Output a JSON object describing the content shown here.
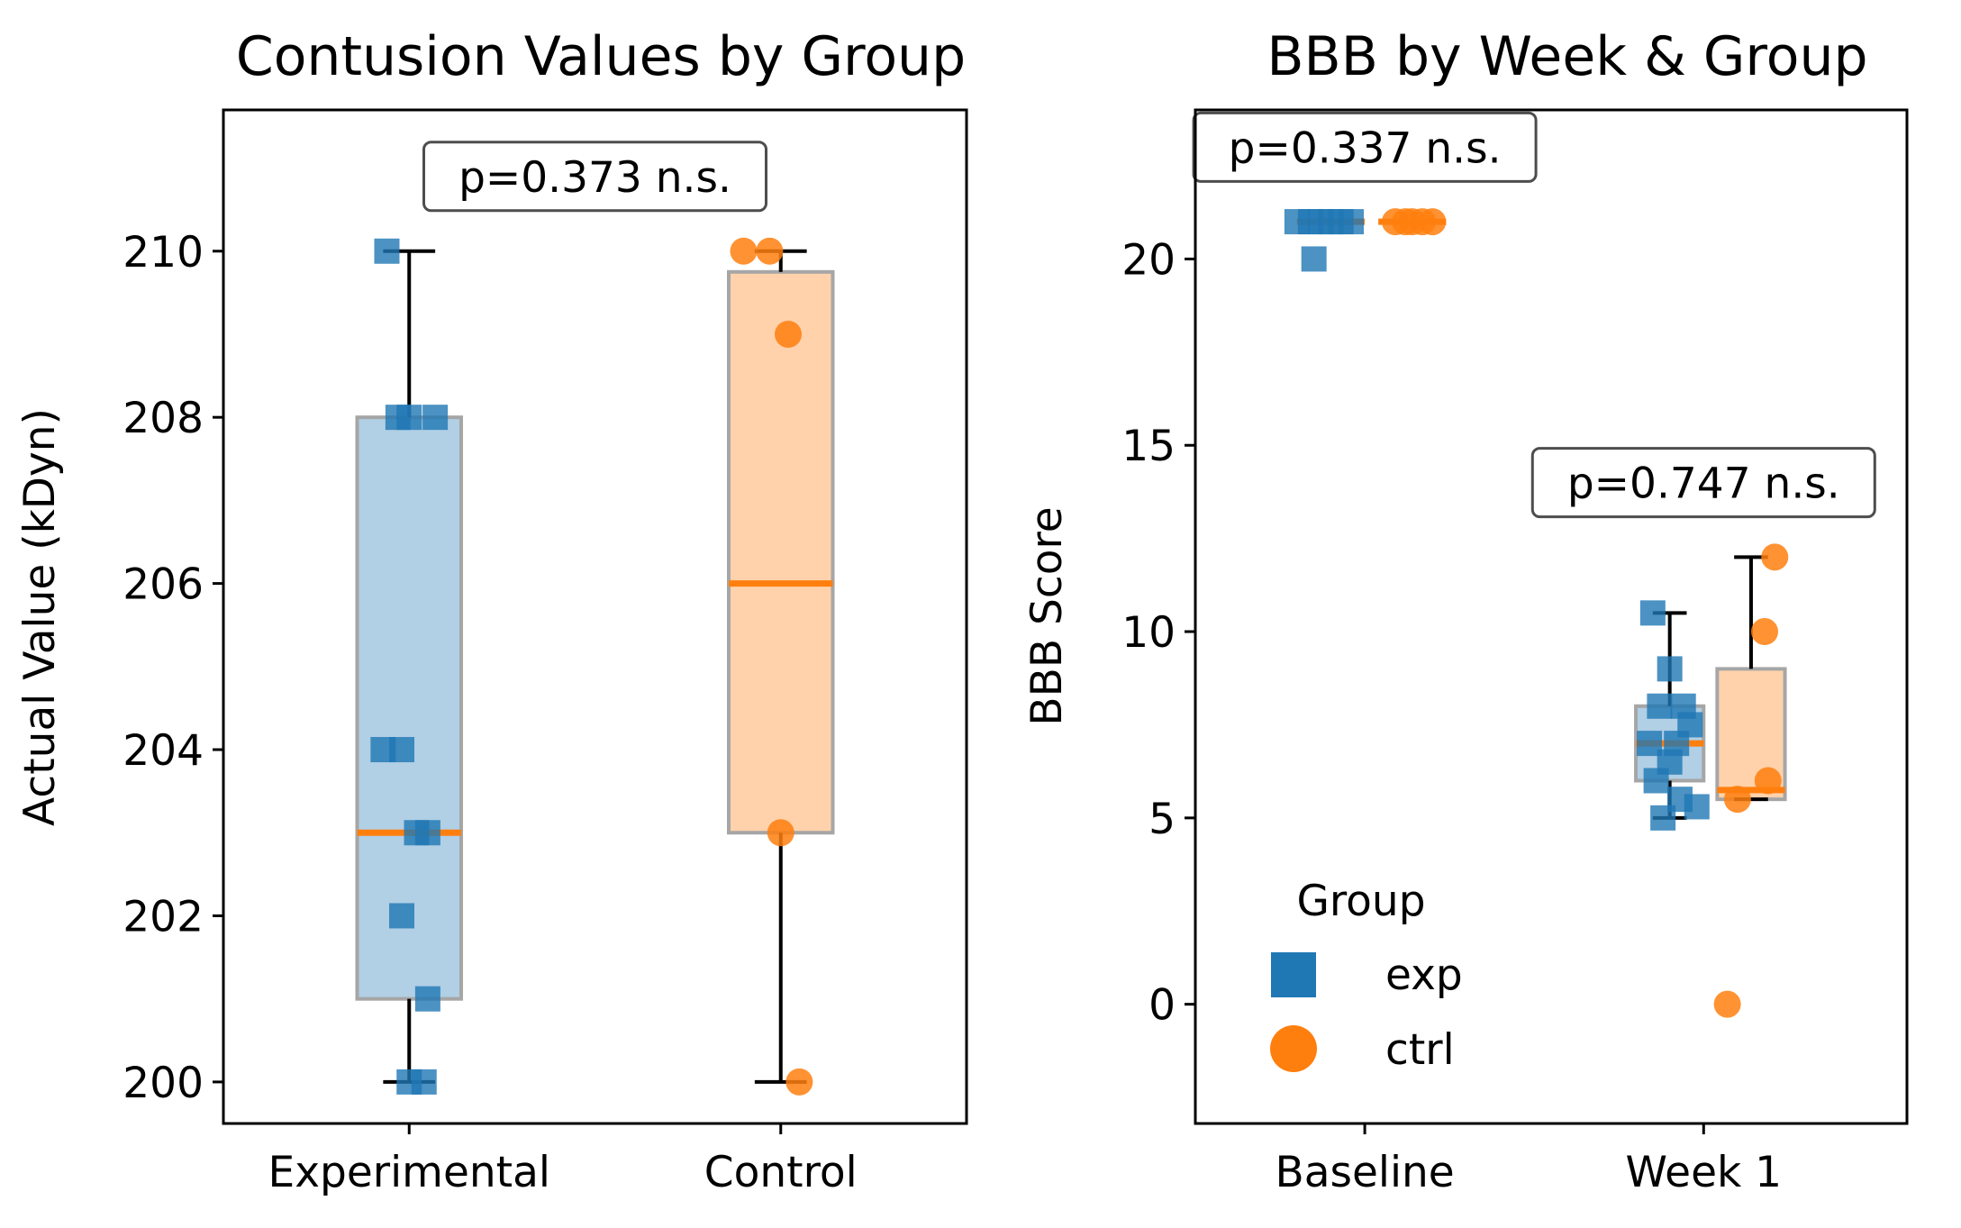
{
  "chart_data": [
    {
      "type": "box",
      "title": "Contusion Values by Group",
      "xlabel": "",
      "ylabel": "Actual Value (kDyn)",
      "categories": [
        "Experimental",
        "Control"
      ],
      "ylim": [
        199.5,
        211.7
      ],
      "yticks": [
        200,
        202,
        204,
        206,
        208,
        210
      ],
      "grid": false,
      "boxes": [
        {
          "category": "Experimental",
          "color": "#1f77b4",
          "whisker_low": 200,
          "q1": 201,
          "median": 203,
          "q3": 208,
          "whisker_high": 210
        },
        {
          "category": "Control",
          "color": "#ff7f0e",
          "whisker_low": 200,
          "q1": 203,
          "median": 206,
          "q3": 209.75,
          "whisker_high": 210
        }
      ],
      "points": [
        {
          "category": "Experimental",
          "marker": "square",
          "color": "#1f77b4",
          "values": [
            210,
            208,
            208,
            208,
            204,
            204,
            203,
            203,
            202,
            201,
            200,
            200
          ],
          "offsets": [
            -0.06,
            -0.03,
            0.0,
            0.07,
            -0.07,
            -0.02,
            0.02,
            0.05,
            -0.02,
            0.05,
            0.0,
            0.04
          ]
        },
        {
          "category": "Control",
          "marker": "circle",
          "color": "#ff7f0e",
          "values": [
            210,
            210,
            209,
            203,
            200
          ],
          "offsets": [
            -0.1,
            -0.03,
            0.02,
            0.0,
            0.05
          ]
        }
      ],
      "annotations": [
        {
          "text": "p=0.373 n.s.",
          "x": 0.5,
          "y": 210.9
        }
      ]
    },
    {
      "type": "box",
      "title": "BBB by Week & Group",
      "xlabel": "",
      "ylabel": "BBB Score",
      "categories": [
        "Baseline",
        "Week 1"
      ],
      "ylim": [
        -3.2,
        24.0
      ],
      "yticks": [
        0,
        5,
        10,
        15,
        20
      ],
      "grid": false,
      "boxes": [
        {
          "category": "Baseline",
          "group": "exp",
          "color": "#1f77b4",
          "whisker_low": 21,
          "q1": 21,
          "median": 21,
          "q3": 21,
          "whisker_high": 21
        },
        {
          "category": "Baseline",
          "group": "ctrl",
          "color": "#ff7f0e",
          "whisker_low": 21,
          "q1": 21,
          "median": 21,
          "q3": 21,
          "whisker_high": 21
        },
        {
          "category": "Week 1",
          "group": "exp",
          "color": "#1f77b4",
          "whisker_low": 5,
          "q1": 6,
          "median": 7,
          "q3": 8,
          "whisker_high": 10.5
        },
        {
          "category": "Week 1",
          "group": "ctrl",
          "color": "#ff7f0e",
          "whisker_low": 5.5,
          "q1": 5.5,
          "median": 5.75,
          "q3": 9,
          "whisker_high": 12
        }
      ],
      "points": [
        {
          "category": "Baseline",
          "group": "exp",
          "marker": "square",
          "color": "#1f77b4",
          "values": [
            21,
            21,
            21,
            21,
            21,
            21,
            20
          ],
          "offsets": [
            -0.1,
            -0.06,
            -0.03,
            0.0,
            0.03,
            0.06,
            -0.05
          ]
        },
        {
          "category": "Baseline",
          "group": "ctrl",
          "marker": "circle",
          "color": "#ff7f0e",
          "values": [
            21,
            21,
            21,
            21,
            21
          ],
          "offsets": [
            -0.05,
            -0.02,
            0.0,
            0.03,
            0.06
          ]
        },
        {
          "category": "Week 1",
          "group": "exp",
          "marker": "square",
          "color": "#1f77b4",
          "values": [
            10.5,
            9,
            8,
            8,
            7.5,
            7,
            7,
            6.5,
            6,
            5.5,
            5.3,
            5
          ],
          "offsets": [
            -0.05,
            0.0,
            -0.03,
            0.04,
            0.06,
            -0.06,
            0.02,
            0.0,
            -0.04,
            0.03,
            0.08,
            -0.02
          ]
        },
        {
          "category": "Week 1",
          "group": "ctrl",
          "marker": "circle",
          "color": "#ff7f0e",
          "values": [
            12,
            10,
            6,
            5.5,
            0
          ],
          "offsets": [
            0.07,
            0.04,
            0.05,
            -0.04,
            -0.07
          ]
        }
      ],
      "annotations": [
        {
          "text": "p=0.337 n.s.",
          "x": 0.0,
          "y": 23.0
        },
        {
          "text": "p=0.747 n.s.",
          "x": 1.0,
          "y": 14.0
        }
      ],
      "legend": {
        "title": "Group",
        "position": "lower-left",
        "entries": [
          {
            "label": "exp",
            "marker": "square",
            "color": "#1f77b4"
          },
          {
            "label": "ctrl",
            "marker": "circle",
            "color": "#ff7f0e"
          }
        ]
      }
    }
  ]
}
